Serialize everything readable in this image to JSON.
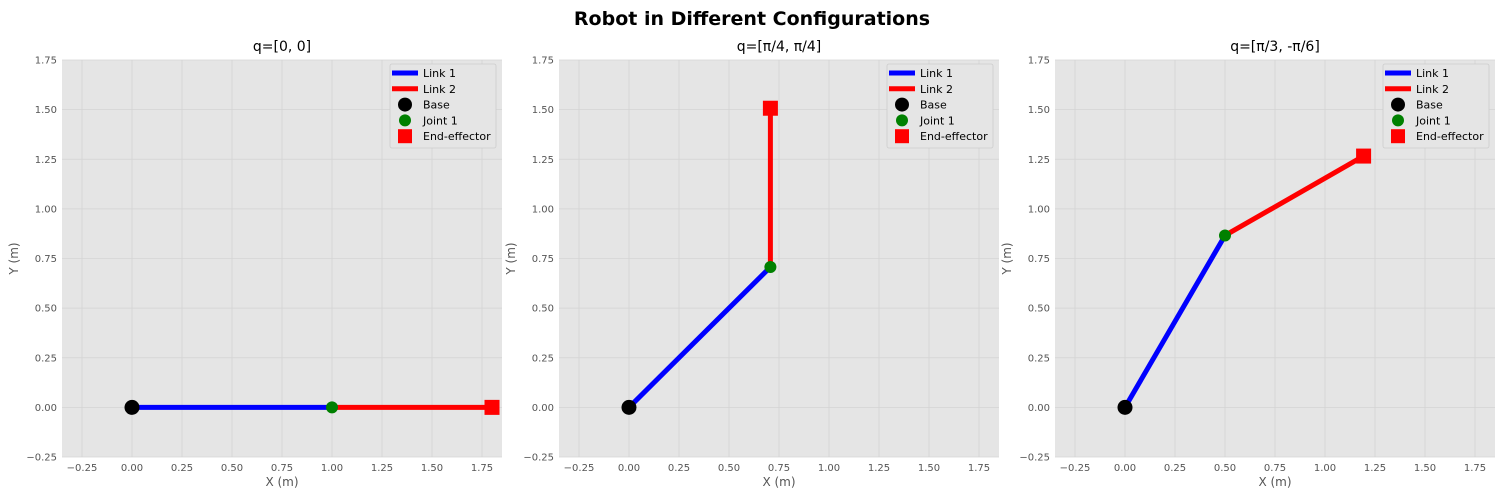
{
  "figure": {
    "suptitle": "Robot in Different Configurations"
  },
  "chart_data": [
    {
      "type": "line",
      "title": "q=[0, 0]",
      "xlabel": "X (m)",
      "ylabel": "Y (m)",
      "xlim": [
        -0.35,
        1.85
      ],
      "ylim": [
        -0.25,
        1.75
      ],
      "xticks": [
        "−0.25",
        "0.00",
        "0.25",
        "0.50",
        "0.75",
        "1.00",
        "1.25",
        "1.50",
        "1.75"
      ],
      "xtick_values": [
        -0.25,
        0,
        0.25,
        0.5,
        0.75,
        1.0,
        1.25,
        1.5,
        1.75
      ],
      "yticks": [
        "−0.25",
        "0.00",
        "0.25",
        "0.50",
        "0.75",
        "1.00",
        "1.25",
        "1.50",
        "1.75"
      ],
      "ytick_values": [
        -0.25,
        0,
        0.25,
        0.5,
        0.75,
        1.0,
        1.25,
        1.5,
        1.75
      ],
      "grid": true,
      "legend_position": "top-right",
      "base": [
        0,
        0
      ],
      "joint1": [
        1.0,
        0
      ],
      "end_effector": [
        1.8,
        0
      ],
      "series": [
        {
          "name": "Link 1",
          "x": [
            0,
            1.0
          ],
          "y": [
            0,
            0
          ],
          "color": "#0000ff"
        },
        {
          "name": "Link 2",
          "x": [
            1.0,
            1.8
          ],
          "y": [
            0,
            0
          ],
          "color": "#ff0000"
        }
      ],
      "legend": [
        "Link 1",
        "Link 2",
        "Base",
        "Joint 1",
        "End-effector"
      ]
    },
    {
      "type": "line",
      "title": "q=[π/4, π/4]",
      "xlabel": "X (m)",
      "ylabel": "Y (m)",
      "xlim": [
        -0.35,
        1.85
      ],
      "ylim": [
        -0.25,
        1.75
      ],
      "xticks": [
        "−0.25",
        "0.00",
        "0.25",
        "0.50",
        "0.75",
        "1.00",
        "1.25",
        "1.50",
        "1.75"
      ],
      "xtick_values": [
        -0.25,
        0,
        0.25,
        0.5,
        0.75,
        1.0,
        1.25,
        1.5,
        1.75
      ],
      "yticks": [
        "−0.25",
        "0.00",
        "0.25",
        "0.50",
        "0.75",
        "1.00",
        "1.25",
        "1.50",
        "1.75"
      ],
      "ytick_values": [
        -0.25,
        0,
        0.25,
        0.5,
        0.75,
        1.0,
        1.25,
        1.5,
        1.75
      ],
      "grid": true,
      "legend_position": "top-right",
      "base": [
        0,
        0
      ],
      "joint1": [
        0.707,
        0.707
      ],
      "end_effector": [
        0.707,
        1.507
      ],
      "series": [
        {
          "name": "Link 1",
          "x": [
            0,
            0.707
          ],
          "y": [
            0,
            0.707
          ],
          "color": "#0000ff"
        },
        {
          "name": "Link 2",
          "x": [
            0.707,
            0.707
          ],
          "y": [
            0.707,
            1.507
          ],
          "color": "#ff0000"
        }
      ],
      "legend": [
        "Link 1",
        "Link 2",
        "Base",
        "Joint 1",
        "End-effector"
      ]
    },
    {
      "type": "line",
      "title": "q=[π/3, -π/6]",
      "xlabel": "X (m)",
      "ylabel": "Y (m)",
      "xlim": [
        -0.35,
        1.85
      ],
      "ylim": [
        -0.25,
        1.75
      ],
      "xticks": [
        "−0.25",
        "0.00",
        "0.25",
        "0.50",
        "0.75",
        "1.00",
        "1.25",
        "1.50",
        "1.75"
      ],
      "xtick_values": [
        -0.25,
        0,
        0.25,
        0.5,
        0.75,
        1.0,
        1.25,
        1.5,
        1.75
      ],
      "yticks": [
        "−0.25",
        "0.00",
        "0.25",
        "0.50",
        "0.75",
        "1.00",
        "1.25",
        "1.50",
        "1.75"
      ],
      "ytick_values": [
        -0.25,
        0,
        0.25,
        0.5,
        0.75,
        1.0,
        1.25,
        1.5,
        1.75
      ],
      "grid": true,
      "legend_position": "top-right",
      "base": [
        0,
        0
      ],
      "joint1": [
        0.5,
        0.866
      ],
      "end_effector": [
        1.193,
        1.266
      ],
      "series": [
        {
          "name": "Link 1",
          "x": [
            0,
            0.5
          ],
          "y": [
            0,
            0.866
          ],
          "color": "#0000ff"
        },
        {
          "name": "Link 2",
          "x": [
            0.5,
            1.193
          ],
          "y": [
            0.866,
            1.266
          ],
          "color": "#ff0000"
        }
      ],
      "legend": [
        "Link 1",
        "Link 2",
        "Base",
        "Joint 1",
        "End-effector"
      ]
    }
  ],
  "colors": {
    "link1": "#0000ff",
    "link2": "#ff0000",
    "base": "#000000",
    "joint1": "#008000",
    "end_effector": "#ff0000",
    "axes_bg": "#e5e5e5",
    "grid": "#d4d4d4"
  }
}
